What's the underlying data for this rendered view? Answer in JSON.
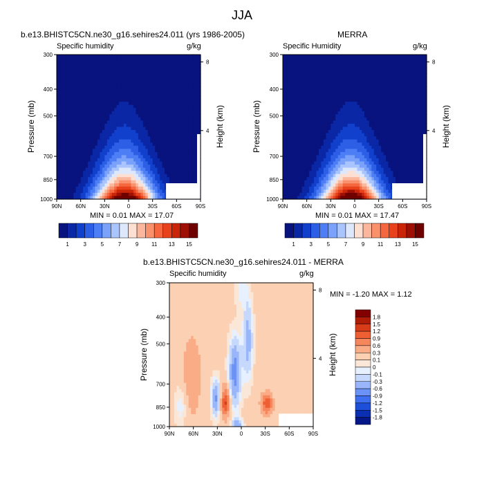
{
  "figure": {
    "title": "JJA",
    "colors": {
      "seq": [
        "#08137e",
        "#0a27a6",
        "#1140cc",
        "#2c5fe6",
        "#4d7ef5",
        "#7aa2fb",
        "#aac5fe",
        "#dde8fd",
        "#fde0d2",
        "#fbb79e",
        "#f9916d",
        "#f5673e",
        "#e8421d",
        "#c92508",
        "#9e0f04",
        "#6e0000"
      ],
      "div": [
        "#04188a",
        "#0a2fb3",
        "#1e4fd8",
        "#3d6ff0",
        "#6b93f7",
        "#9ab6fa",
        "#c6d8fc",
        "#e7f0fe",
        "#fbe7d8",
        "#fbd0b3",
        "#f9ac86",
        "#f6875d",
        "#ef5f34",
        "#d63c17",
        "#b01d07",
        "#820000"
      ]
    }
  },
  "chart_data": [
    {
      "type": "heatmap",
      "title": "b.e13.BHISTC5CN.ne30_g16.sehires24.011 (yrs 1986-2005)",
      "left_label": "Specific humidity",
      "right_label": "g/kg",
      "ylabel": "Pressure (mb)",
      "ylabel_right": "Height (km)",
      "xticks": [
        "90N",
        "60N",
        "30N",
        "0",
        "30S",
        "60S",
        "90S"
      ],
      "yticks": [
        "300",
        "400",
        "500",
        "700",
        "850",
        "1000"
      ],
      "yticks_right": [
        "8",
        "4"
      ],
      "xlim": [
        90,
        -90
      ],
      "ylim": [
        1000,
        300
      ],
      "peak": {
        "lat": 5,
        "value": 17.07
      },
      "min_text": "MIN =  0.01  MAX =  17.07",
      "colorbar_labels": [
        "1",
        "3",
        "5",
        "7",
        "9",
        "11",
        "13",
        "15"
      ]
    },
    {
      "type": "heatmap",
      "title": "MERRA",
      "left_label": "Specific Humidity",
      "right_label": "g/kg",
      "ylabel": "Pressure (mb)",
      "ylabel_right": "Height (km)",
      "xticks": [
        "90N",
        "60N",
        "30N",
        "0",
        "30S",
        "60S",
        "90S"
      ],
      "yticks": [
        "300",
        "400",
        "500",
        "700",
        "850",
        "1000"
      ],
      "yticks_right": [
        "8",
        "4"
      ],
      "xlim": [
        90,
        -90
      ],
      "ylim": [
        1000,
        300
      ],
      "peak": {
        "lat": 5,
        "value": 17.47
      },
      "min_text": "MIN =  0.01  MAX =  17.47",
      "colorbar_labels": [
        "1",
        "3",
        "5",
        "7",
        "9",
        "11",
        "13",
        "15"
      ]
    },
    {
      "type": "heatmap",
      "title": "b.e13.BHISTC5CN.ne30_g16.sehires24.011 - MERRA",
      "left_label": "Specific humidity",
      "right_label": "g/kg",
      "ylabel": "Pressure (mb)",
      "ylabel_right": "Height (km)",
      "xticks": [
        "90N",
        "60N",
        "30N",
        "0",
        "30S",
        "60S",
        "90S"
      ],
      "yticks": [
        "300",
        "400",
        "500",
        "700",
        "850",
        "1000"
      ],
      "yticks_right": [
        "8",
        "4"
      ],
      "xlim": [
        90,
        -90
      ],
      "ylim": [
        1000,
        300
      ],
      "min_text": "MIN =  -1.20  MAX =   1.12",
      "colorbar_labels": [
        "1.8",
        "1.5",
        "1.2",
        "0.9",
        "0.6",
        "0.3",
        "0.1",
        "0",
        "-0.1",
        "-0.3",
        "-0.6",
        "-0.9",
        "-1.2",
        "-1.5",
        "-1.8"
      ]
    }
  ]
}
